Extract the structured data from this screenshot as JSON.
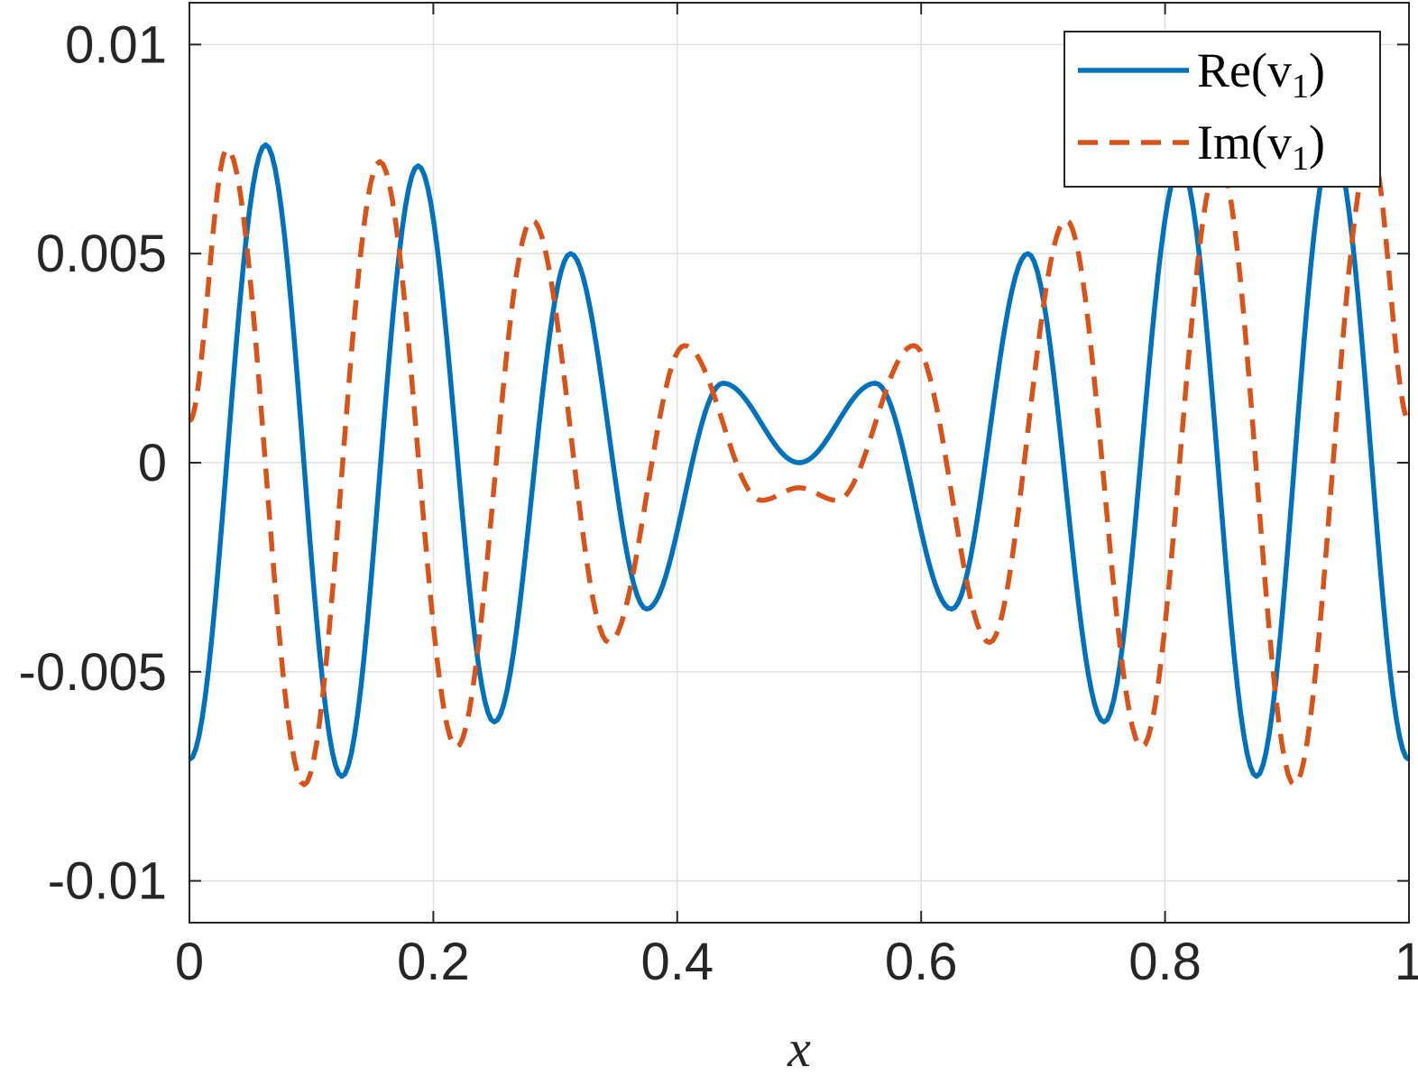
{
  "chart_data": {
    "type": "line",
    "title": "",
    "xlabel": "x",
    "ylabel": "",
    "xlim": [
      0,
      1
    ],
    "ylim": [
      -0.011,
      0.011
    ],
    "grid": true,
    "legend_position": "top-right",
    "xticks": [
      0,
      0.2,
      0.4,
      0.6,
      0.8,
      1
    ],
    "xtick_labels": [
      "0",
      "0.2",
      "0.4",
      "0.6",
      "0.8",
      "1"
    ],
    "yticks": [
      0.01,
      0.005,
      0,
      -0.005,
      -0.01
    ],
    "ytick_labels": [
      "0.01",
      "0.005",
      "0",
      "-0.005",
      "-0.01"
    ],
    "series": [
      {
        "name": "Re(v1)",
        "legend_main": "Re(v",
        "legend_sub": "1",
        "legend_close": ")",
        "color": "#0072BD",
        "style": "solid",
        "points": [
          [
            0.0,
            -0.0071
          ],
          [
            0.0625,
            0.0076
          ],
          [
            0.125,
            -0.0075
          ],
          [
            0.1875,
            0.0071
          ],
          [
            0.25,
            -0.0062
          ],
          [
            0.3125,
            0.005
          ],
          [
            0.375,
            -0.0035
          ],
          [
            0.4375,
            0.0019
          ],
          [
            0.5,
            0.0
          ],
          [
            0.5625,
            0.0019
          ],
          [
            0.625,
            -0.0035
          ],
          [
            0.6875,
            0.005
          ],
          [
            0.75,
            -0.0062
          ],
          [
            0.8125,
            0.0071
          ],
          [
            0.875,
            -0.0075
          ],
          [
            0.9375,
            0.0076
          ],
          [
            1.0,
            -0.0071
          ]
        ]
      },
      {
        "name": "Im(v1)",
        "legend_main": "Im(v",
        "legend_sub": "1",
        "legend_close": ")",
        "color": "#D95319",
        "style": "dashed",
        "points": [
          [
            0.0,
            0.001
          ],
          [
            0.031,
            0.0075
          ],
          [
            0.094,
            -0.0077
          ],
          [
            0.156,
            0.0072
          ],
          [
            0.219,
            -0.0068
          ],
          [
            0.281,
            0.0058
          ],
          [
            0.344,
            -0.0043
          ],
          [
            0.406,
            0.0028
          ],
          [
            0.469,
            -0.0009
          ],
          [
            0.5,
            -0.0006
          ],
          [
            0.531,
            -0.0009
          ],
          [
            0.594,
            0.0028
          ],
          [
            0.656,
            -0.0043
          ],
          [
            0.719,
            0.0058
          ],
          [
            0.781,
            -0.0068
          ],
          [
            0.844,
            0.0072
          ],
          [
            0.906,
            -0.0077
          ],
          [
            0.969,
            0.0075
          ],
          [
            1.0,
            0.001
          ]
        ]
      }
    ]
  }
}
